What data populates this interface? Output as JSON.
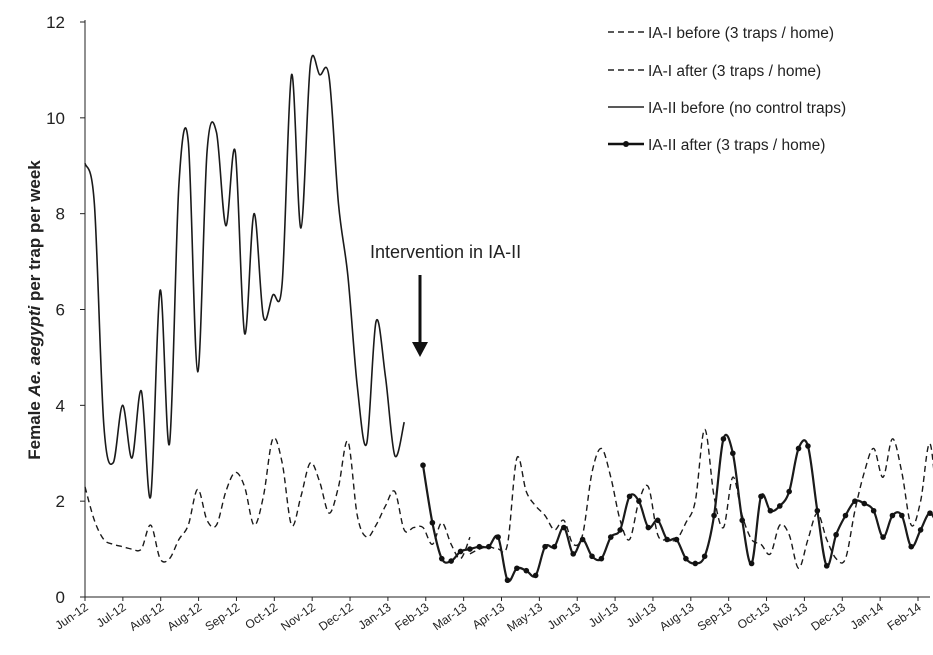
{
  "chart_data": {
    "type": "line",
    "ylabel_parts": [
      "Female ",
      "Ae. aegypti",
      " per trap per week"
    ],
    "ylim": [
      0,
      12
    ],
    "yticks": [
      "0",
      "2",
      "4",
      "6",
      "8",
      "10",
      "12"
    ],
    "x_tick_labels": [
      "Jun-12",
      "Jul-12",
      "Aug-12",
      "Aug-12",
      "Sep-12",
      "Oct-12",
      "Nov-12",
      "Dec-12",
      "Jan-13",
      "Feb-13",
      "Mar-13",
      "Apr-13",
      "May-13",
      "Jun-13",
      "Jul-13",
      "Jul-13",
      "Aug-13",
      "Sep-13",
      "Oct-13",
      "Nov-13",
      "Dec-13",
      "Jan-14",
      "Feb-14"
    ],
    "x_week_count": 90,
    "annotation": "Intervention in IA-II",
    "legend": [
      {
        "label": "IA-I before (3 traps / home)",
        "style": "dashed"
      },
      {
        "label": "IA-I after (3 traps / home)",
        "style": "dashed"
      },
      {
        "label": "IA-II before (no control traps)",
        "style": "solid"
      },
      {
        "label": "IA-II after (3 traps / home)",
        "style": "solid-marker"
      }
    ],
    "series": [
      {
        "name": "IA-I before (3 traps / home)",
        "style": "dashed",
        "start_week": 0,
        "values": [
          2.3,
          1.6,
          1.2,
          1.1,
          1.05,
          1.0,
          1.0,
          1.5,
          0.8,
          0.8,
          1.2,
          1.5,
          2.25,
          1.6,
          1.5,
          2.2,
          2.6,
          2.3,
          1.5,
          2.1,
          3.3,
          2.8,
          1.5,
          2.1,
          2.8,
          2.4,
          1.75,
          2.3,
          3.25,
          1.7,
          1.25,
          1.5,
          1.9,
          2.2,
          1.4,
          1.45,
          1.45,
          1.1,
          1.55,
          1.1,
          0.8,
          1.25
        ]
      },
      {
        "name": "IA-I after (3 traps / home)",
        "style": "dashed",
        "start_week": 41,
        "values": [
          0.9,
          1.0,
          1.05,
          1.0,
          1.1,
          2.9,
          2.2,
          1.9,
          1.7,
          1.4,
          1.6,
          1.1,
          1.3,
          2.6,
          3.1,
          2.5,
          1.6,
          1.2,
          2.0,
          2.3,
          1.3,
          1.2,
          1.2,
          1.55,
          2.0,
          3.5,
          2.1,
          1.45,
          2.5,
          1.7,
          1.2,
          1.1,
          0.9,
          1.5,
          1.3,
          0.6,
          1.2,
          1.75,
          1.2,
          0.8,
          0.8,
          1.8,
          2.6,
          3.1,
          2.5,
          3.3,
          2.6,
          1.5,
          2.0,
          3.2,
          1.5,
          1.2,
          1.5,
          1.8,
          1.85,
          1.7,
          1.6,
          1.3,
          1.6,
          1.65,
          1.1
        ]
      },
      {
        "name": "IA-II before (no control traps)",
        "style": "solid",
        "start_week": 0,
        "values": [
          9.05,
          8.2,
          3.6,
          2.8,
          4.0,
          2.9,
          4.3,
          2.1,
          6.4,
          3.2,
          8.6,
          9.5,
          4.7,
          9.3,
          9.7,
          7.75,
          9.3,
          5.5,
          8.0,
          5.85,
          6.3,
          6.55,
          10.9,
          7.7,
          11.1,
          10.9,
          10.85,
          8.2,
          6.7,
          4.4,
          3.2,
          5.75,
          4.6,
          2.95,
          3.65
        ]
      },
      {
        "name": "IA-II after (3 traps / home)",
        "style": "solid-marker",
        "start_week": 36,
        "values": [
          2.75,
          1.55,
          0.8,
          0.75,
          0.95,
          1.0,
          1.05,
          1.05,
          1.25,
          0.35,
          0.6,
          0.55,
          0.45,
          1.05,
          1.05,
          1.45,
          0.9,
          1.2,
          0.85,
          0.8,
          1.25,
          1.4,
          2.1,
          2.0,
          1.45,
          1.6,
          1.2,
          1.2,
          0.8,
          0.7,
          0.85,
          1.7,
          3.3,
          3.0,
          1.6,
          0.7,
          2.1,
          1.8,
          1.9,
          2.2,
          3.1,
          3.15,
          1.8,
          0.65,
          1.3,
          1.7,
          2.0,
          1.95,
          1.8,
          1.25,
          1.7,
          1.7,
          1.05,
          1.4,
          1.75,
          1.4
        ]
      }
    ]
  }
}
